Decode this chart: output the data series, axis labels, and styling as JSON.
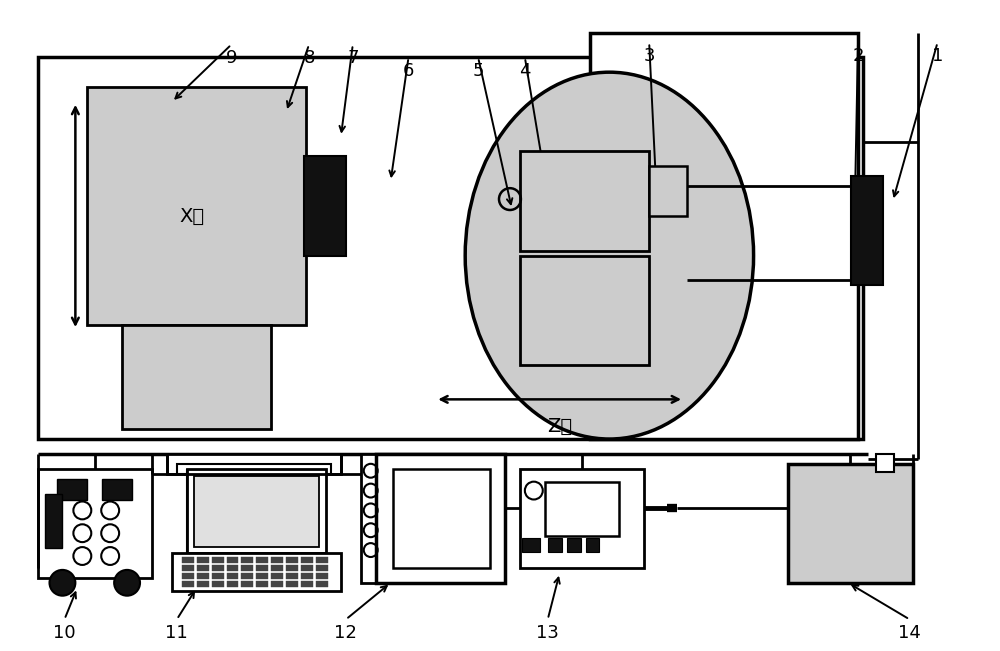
{
  "bg_color": "#ffffff",
  "line_color": "#000000",
  "fill_light": "#cccccc",
  "fill_dark": "#111111",
  "fig_width": 10.0,
  "fig_height": 6.51
}
